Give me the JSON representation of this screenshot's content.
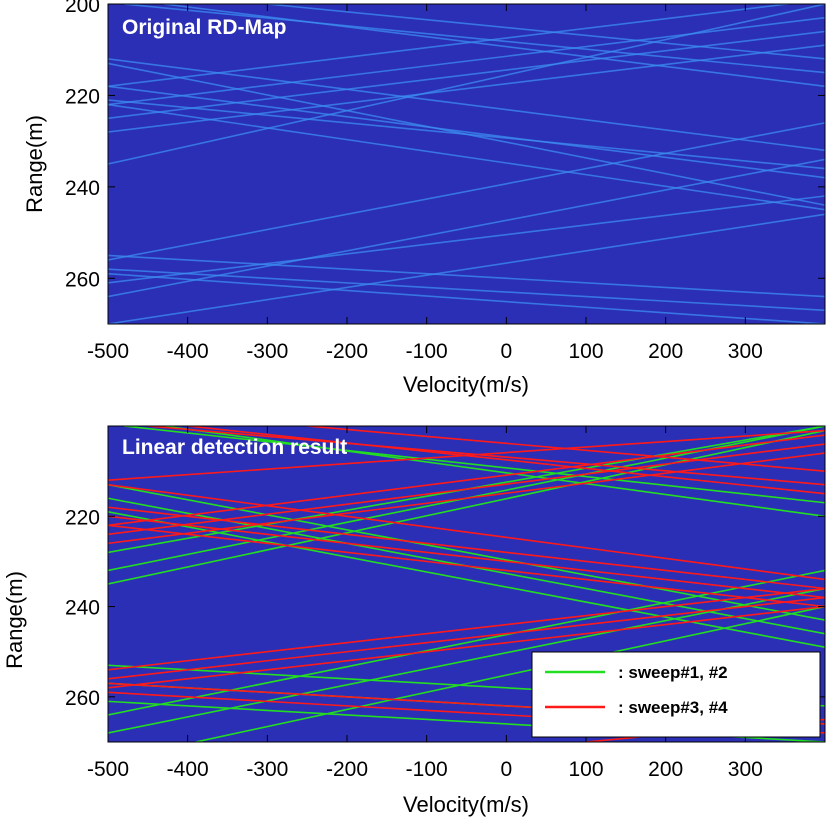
{
  "chart_data": [
    {
      "type": "heatmap",
      "title": "Original RD-Map",
      "xlabel": "Velocity(m/s)",
      "ylabel": "Range(m)",
      "xlim": [
        -500,
        400
      ],
      "ylim": [
        200,
        270
      ],
      "y_inverted": true,
      "x_ticks": [
        -500,
        -400,
        -300,
        -200,
        -100,
        0,
        100,
        200,
        300
      ],
      "x_tick_labels": [
        "-500",
        "-400",
        "-300",
        "-200",
        "-100",
        "0",
        "100",
        "200",
        "300"
      ],
      "y_ticks": [
        200,
        220,
        240,
        260
      ],
      "y_tick_labels": [
        "200",
        "220",
        "240",
        "260"
      ],
      "background_color": "#2b2fb6",
      "line_color": "#3c8ef0",
      "lines": [
        {
          "v0": -500,
          "r0": 218,
          "v1": 400,
          "r1": 199
        },
        {
          "v0": -500,
          "r0": 222,
          "v1": 400,
          "r1": 203
        },
        {
          "v0": -500,
          "r0": 225,
          "v1": 400,
          "r1": 206
        },
        {
          "v0": -500,
          "r0": 228,
          "v1": 400,
          "r1": 209
        },
        {
          "v0": -500,
          "r0": 235,
          "v1": 400,
          "r1": 200
        },
        {
          "v0": -500,
          "r0": 213,
          "v1": 400,
          "r1": 244
        },
        {
          "v0": -500,
          "r0": 218,
          "v1": 400,
          "r1": 238
        },
        {
          "v0": -500,
          "r0": 222,
          "v1": 400,
          "r1": 245
        },
        {
          "v0": -500,
          "r0": 221,
          "v1": 400,
          "r1": 236
        },
        {
          "v0": -500,
          "r0": 212,
          "v1": 400,
          "r1": 232
        },
        {
          "v0": -500,
          "r0": 261,
          "v1": 400,
          "r1": 242
        },
        {
          "v0": -500,
          "r0": 264,
          "v1": 400,
          "r1": 234
        },
        {
          "v0": -500,
          "r0": 256,
          "v1": 400,
          "r1": 226
        },
        {
          "v0": -500,
          "r0": 270,
          "v1": 400,
          "r1": 246
        },
        {
          "v0": -500,
          "r0": 258,
          "v1": 400,
          "r1": 267
        },
        {
          "v0": -500,
          "r0": 255,
          "v1": 400,
          "r1": 264
        },
        {
          "v0": -500,
          "r0": 259,
          "v1": 400,
          "r1": 270
        },
        {
          "v0": -480,
          "r0": 200,
          "v1": 400,
          "r1": 215
        },
        {
          "v0": -430,
          "r0": 200,
          "v1": 400,
          "r1": 218
        },
        {
          "v0": -300,
          "r0": 200,
          "v1": 400,
          "r1": 212
        }
      ]
    },
    {
      "type": "heatmap",
      "title": "Linear detection result",
      "xlabel": "Velocity(m/s)",
      "ylabel": "Range(m)",
      "xlim": [
        -500,
        400
      ],
      "ylim": [
        200,
        270
      ],
      "y_inverted": true,
      "x_ticks": [
        -500,
        -400,
        -300,
        -200,
        -100,
        0,
        100,
        200,
        300
      ],
      "x_tick_labels": [
        "-500",
        "-400",
        "-300",
        "-200",
        "-100",
        "0",
        "100",
        "200",
        "300"
      ],
      "y_ticks": [
        220,
        240,
        260
      ],
      "y_tick_labels": [
        "220",
        "240",
        "260"
      ],
      "background_color": "#2b2fb6",
      "legend_position": "bottom-right",
      "legend": [
        {
          "label": ": sweep#1, #2",
          "color": "#22dd22"
        },
        {
          "label": ": sweep#3, #4",
          "color": "#ff1a1a"
        }
      ],
      "series": [
        {
          "color": "#22dd22",
          "lines": [
            {
              "v0": -500,
              "r0": 228,
              "v1": 400,
              "r1": 200
            },
            {
              "v0": -500,
              "r0": 232,
              "v1": 400,
              "r1": 200
            },
            {
              "v0": -500,
              "r0": 235,
              "v1": 400,
              "r1": 201
            },
            {
              "v0": -500,
              "r0": 213,
              "v1": 400,
              "r1": 243
            },
            {
              "v0": -500,
              "r0": 216,
              "v1": 400,
              "r1": 246
            },
            {
              "v0": -500,
              "r0": 219,
              "v1": 400,
              "r1": 249
            },
            {
              "v0": -500,
              "r0": 264,
              "v1": 400,
              "r1": 232
            },
            {
              "v0": -500,
              "r0": 268,
              "v1": 400,
              "r1": 236
            },
            {
              "v0": -390,
              "r0": 270,
              "v1": 400,
              "r1": 240
            },
            {
              "v0": -500,
              "r0": 253,
              "v1": 400,
              "r1": 262
            },
            {
              "v0": -500,
              "r0": 257,
              "v1": 400,
              "r1": 266
            },
            {
              "v0": -500,
              "r0": 261,
              "v1": 400,
              "r1": 270
            },
            {
              "v0": -480,
              "r0": 200,
              "v1": 400,
              "r1": 217
            },
            {
              "v0": -430,
              "r0": 200,
              "v1": 400,
              "r1": 220
            }
          ]
        },
        {
          "color": "#ff1a1a",
          "lines": [
            {
              "v0": -500,
              "r0": 212,
              "v1": 400,
              "r1": 201
            },
            {
              "v0": -500,
              "r0": 222,
              "v1": 400,
              "r1": 202
            },
            {
              "v0": -500,
              "r0": 224,
              "v1": 400,
              "r1": 204
            },
            {
              "v0": -500,
              "r0": 226,
              "v1": 400,
              "r1": 206
            },
            {
              "v0": -500,
              "r0": 218,
              "v1": 400,
              "r1": 236
            },
            {
              "v0": -500,
              "r0": 220,
              "v1": 400,
              "r1": 238
            },
            {
              "v0": -500,
              "r0": 222,
              "v1": 400,
              "r1": 240
            },
            {
              "v0": -500,
              "r0": 213,
              "v1": 400,
              "r1": 234
            },
            {
              "v0": -500,
              "r0": 254,
              "v1": 400,
              "r1": 236
            },
            {
              "v0": -500,
              "r0": 256,
              "v1": 400,
              "r1": 238
            },
            {
              "v0": -500,
              "r0": 258,
              "v1": 400,
              "r1": 240
            },
            {
              "v0": -500,
              "r0": 257,
              "v1": 400,
              "r1": 266
            },
            {
              "v0": -500,
              "r0": 259,
              "v1": 400,
              "r1": 268
            },
            {
              "v0": -450,
              "r0": 200,
              "v1": 400,
              "r1": 213
            },
            {
              "v0": -400,
              "r0": 200,
              "v1": 400,
              "r1": 215
            },
            {
              "v0": -250,
              "r0": 200,
              "v1": 400,
              "r1": 210
            },
            {
              "v0": 100,
              "r0": 270,
              "v1": 400,
              "r1": 265
            }
          ]
        }
      ]
    }
  ]
}
